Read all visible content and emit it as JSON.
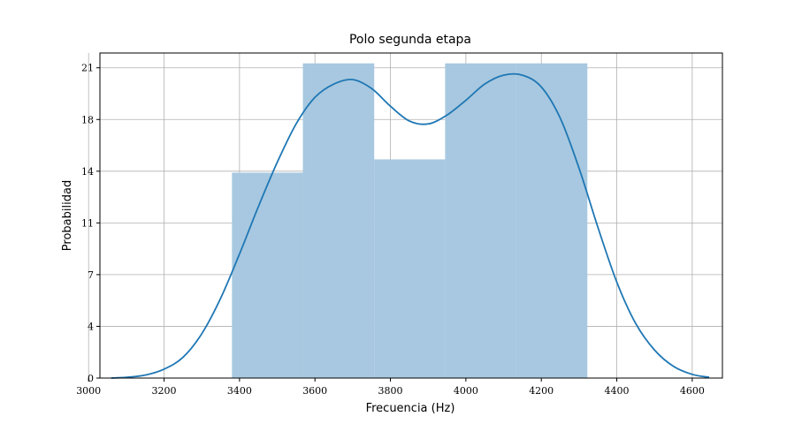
{
  "chart_data": {
    "type": "bar",
    "title": "Polo segunda etapa",
    "xlabel": "Frecuencia (Hz)",
    "ylabel": "Probabilidad",
    "xlim": [
      3030,
      4680
    ],
    "ylim": [
      0,
      22
    ],
    "grid": true,
    "x_ticks": [
      3000,
      3200,
      3400,
      3600,
      3800,
      4000,
      4200,
      4400,
      4600
    ],
    "y_ticks": [
      {
        "value": 0,
        "label": "0"
      },
      {
        "value": 3.5,
        "label": "4"
      },
      {
        "value": 7,
        "label": "7"
      },
      {
        "value": 10.5,
        "label": "11"
      },
      {
        "value": 14,
        "label": "14"
      },
      {
        "value": 17.5,
        "label": "18"
      },
      {
        "value": 21,
        "label": "21"
      }
    ],
    "histogram": {
      "color": "#a7c8e0",
      "bins": [
        {
          "x0": 3380,
          "x1": 3568,
          "height": 13.9
        },
        {
          "x0": 3568,
          "x1": 3757,
          "height": 21.3
        },
        {
          "x0": 3757,
          "x1": 3945,
          "height": 14.8
        },
        {
          "x0": 3945,
          "x1": 4133,
          "height": 21.3
        },
        {
          "x0": 4133,
          "x1": 4322,
          "height": 21.3
        }
      ]
    },
    "kde": {
      "color": "#1f77b4",
      "points": [
        [
          3060,
          0.0
        ],
        [
          3100,
          0.05
        ],
        [
          3150,
          0.2
        ],
        [
          3200,
          0.6
        ],
        [
          3250,
          1.4
        ],
        [
          3300,
          3.0
        ],
        [
          3350,
          5.4
        ],
        [
          3400,
          8.4
        ],
        [
          3450,
          11.6
        ],
        [
          3500,
          14.6
        ],
        [
          3550,
          17.2
        ],
        [
          3600,
          19.0
        ],
        [
          3650,
          19.9
        ],
        [
          3700,
          20.2
        ],
        [
          3750,
          19.6
        ],
        [
          3800,
          18.4
        ],
        [
          3850,
          17.4
        ],
        [
          3900,
          17.2
        ],
        [
          3950,
          17.8
        ],
        [
          4000,
          18.8
        ],
        [
          4050,
          19.9
        ],
        [
          4100,
          20.5
        ],
        [
          4150,
          20.5
        ],
        [
          4200,
          19.7
        ],
        [
          4250,
          17.6
        ],
        [
          4300,
          14.2
        ],
        [
          4350,
          10.2
        ],
        [
          4400,
          6.5
        ],
        [
          4450,
          3.7
        ],
        [
          4500,
          1.9
        ],
        [
          4550,
          0.8
        ],
        [
          4600,
          0.25
        ],
        [
          4645,
          0.05
        ]
      ]
    }
  }
}
